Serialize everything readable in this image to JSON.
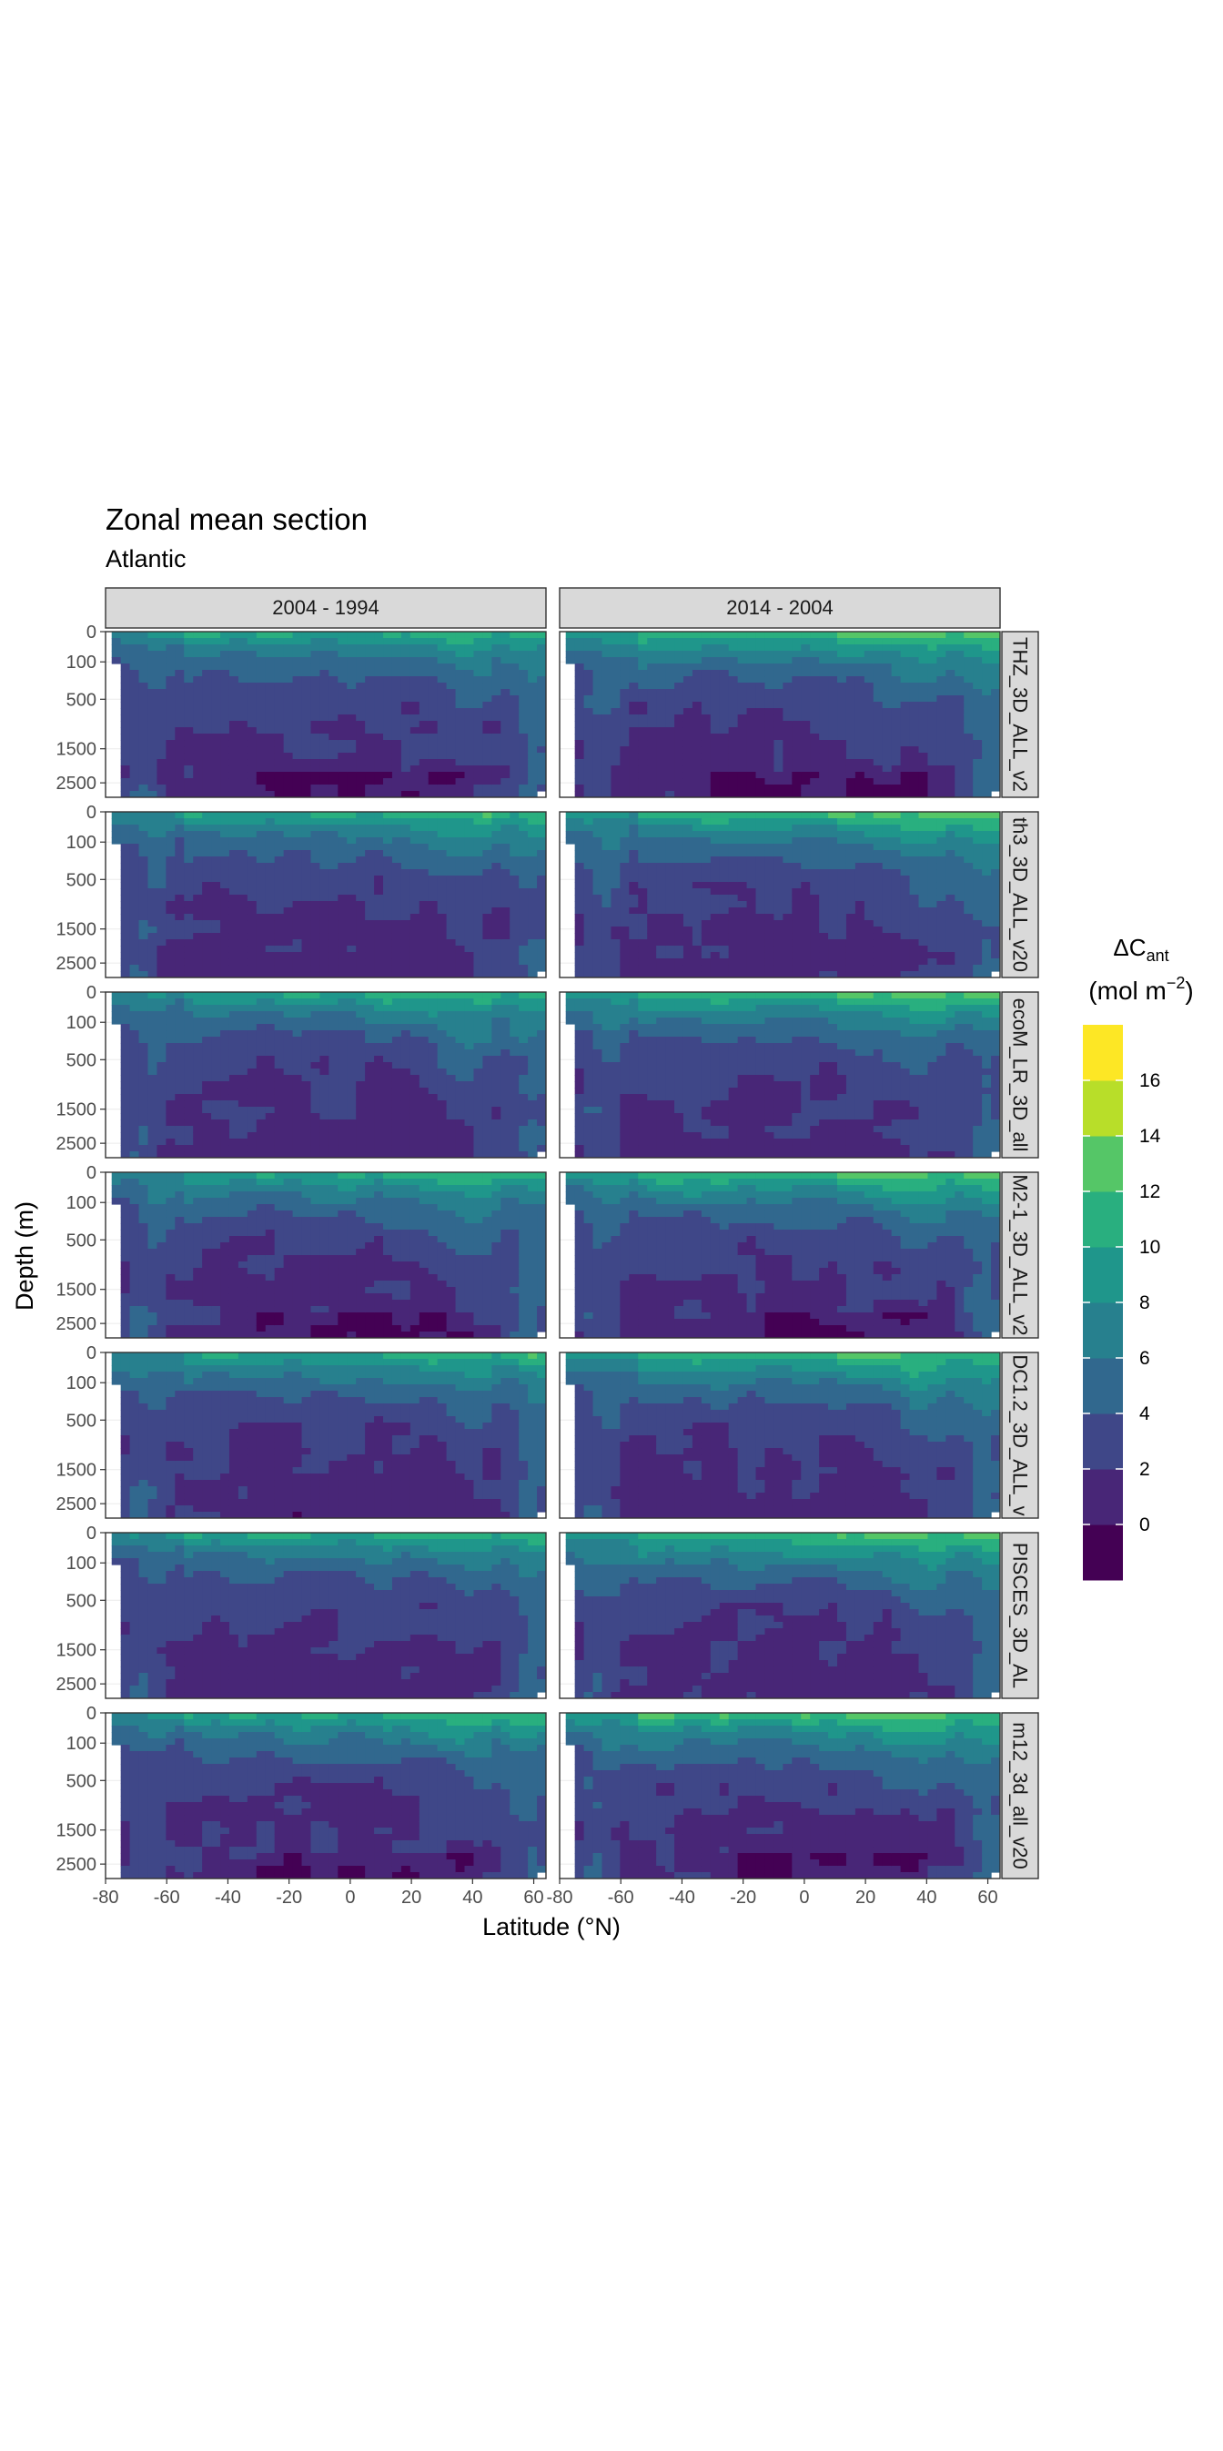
{
  "chart_data": {
    "type": "heatmap",
    "title": "Zonal mean section",
    "subtitle": "Atlantic",
    "xlabel": "Latitude (°N)",
    "ylabel": "Depth (m)",
    "x_ticks": [
      -80,
      -60,
      -40,
      -20,
      0,
      20,
      40,
      60
    ],
    "x_tick_labels": [
      "-80",
      "-60",
      "-40",
      "-20",
      "0",
      "20",
      "40",
      "60"
    ],
    "xlim": [
      -80,
      64
    ],
    "y_ticks": [
      0,
      100,
      500,
      1500,
      2500
    ],
    "y_tick_labels": [
      "0",
      "100",
      "500",
      "1500",
      "2500"
    ],
    "y_scale": "sqrt",
    "ylim": [
      3000,
      0
    ],
    "columns": [
      "2004 - 1994",
      "2014 - 2004"
    ],
    "rows": [
      "THZ_3D_ALL_v2",
      "th3_3D_ALL_v20",
      "ecoM_LR_3D_all",
      "M2-1_3D_ALL_v2",
      "DC1.2_3D_ALL_v",
      "PISCES_3D_AL",
      "m12_3d_all_v20"
    ],
    "legend": {
      "title_main": "ΔC",
      "title_sub": "ant",
      "unit_main": "(mol m",
      "unit_sup": "−2",
      "unit_end": ")",
      "placement": "right",
      "breaks": [
        -2,
        0,
        2,
        4,
        6,
        8,
        10,
        12,
        14,
        16,
        18
      ],
      "labels": [
        "0",
        "2",
        "4",
        "6",
        "8",
        "10",
        "12",
        "14",
        "16"
      ],
      "colors": [
        "#440154",
        "#482677",
        "#3F4788",
        "#31688E",
        "#27808E",
        "#1F968B",
        "#29AF7F",
        "#55C667",
        "#B8DE29",
        "#FDE725"
      ]
    },
    "grid": true,
    "panel_background": "#ffffff",
    "strip_fill": "#d9d9d9"
  }
}
